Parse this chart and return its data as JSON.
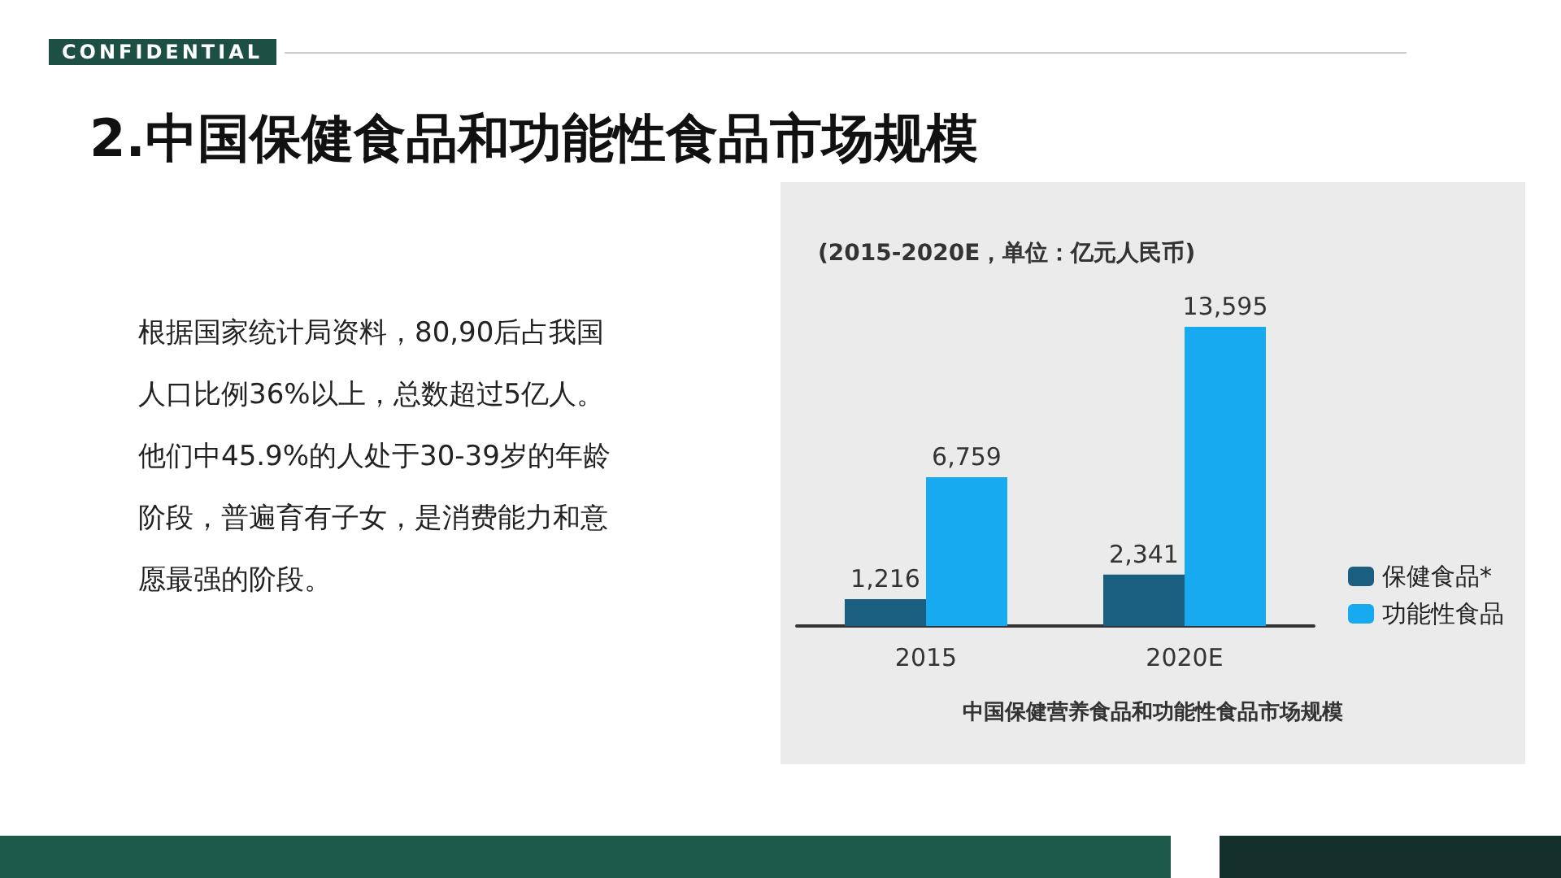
{
  "chart_data": {
    "type": "bar",
    "title": "2.中国保健食品和功能性食品市场规模",
    "subtitle": "(2015-2020E，单位：亿元人民币)",
    "categories": [
      "2015",
      "2020E"
    ],
    "series": [
      {
        "name": "保健食品*",
        "color": "#1b5f80",
        "values": [
          1216,
          2341
        ],
        "value_labels": [
          "1,216",
          "2,341"
        ]
      },
      {
        "name": "功能性食品",
        "color": "#17aaf0",
        "values": [
          6759,
          13595
        ],
        "value_labels": [
          "6,759",
          "13,595"
        ]
      }
    ],
    "legend": "right",
    "annotations": [
      "CONFIDENTIAL",
      "根据国家统计局资料，80,90后占我国人口比例36%以上，总数超过5亿人。他们中45.9%的人处于30-39岁的年龄阶段，普遍育有子女，是消费能力和意愿最强的阶段。",
      "中国保健营养食品和功能性食品市场规模"
    ]
  }
}
